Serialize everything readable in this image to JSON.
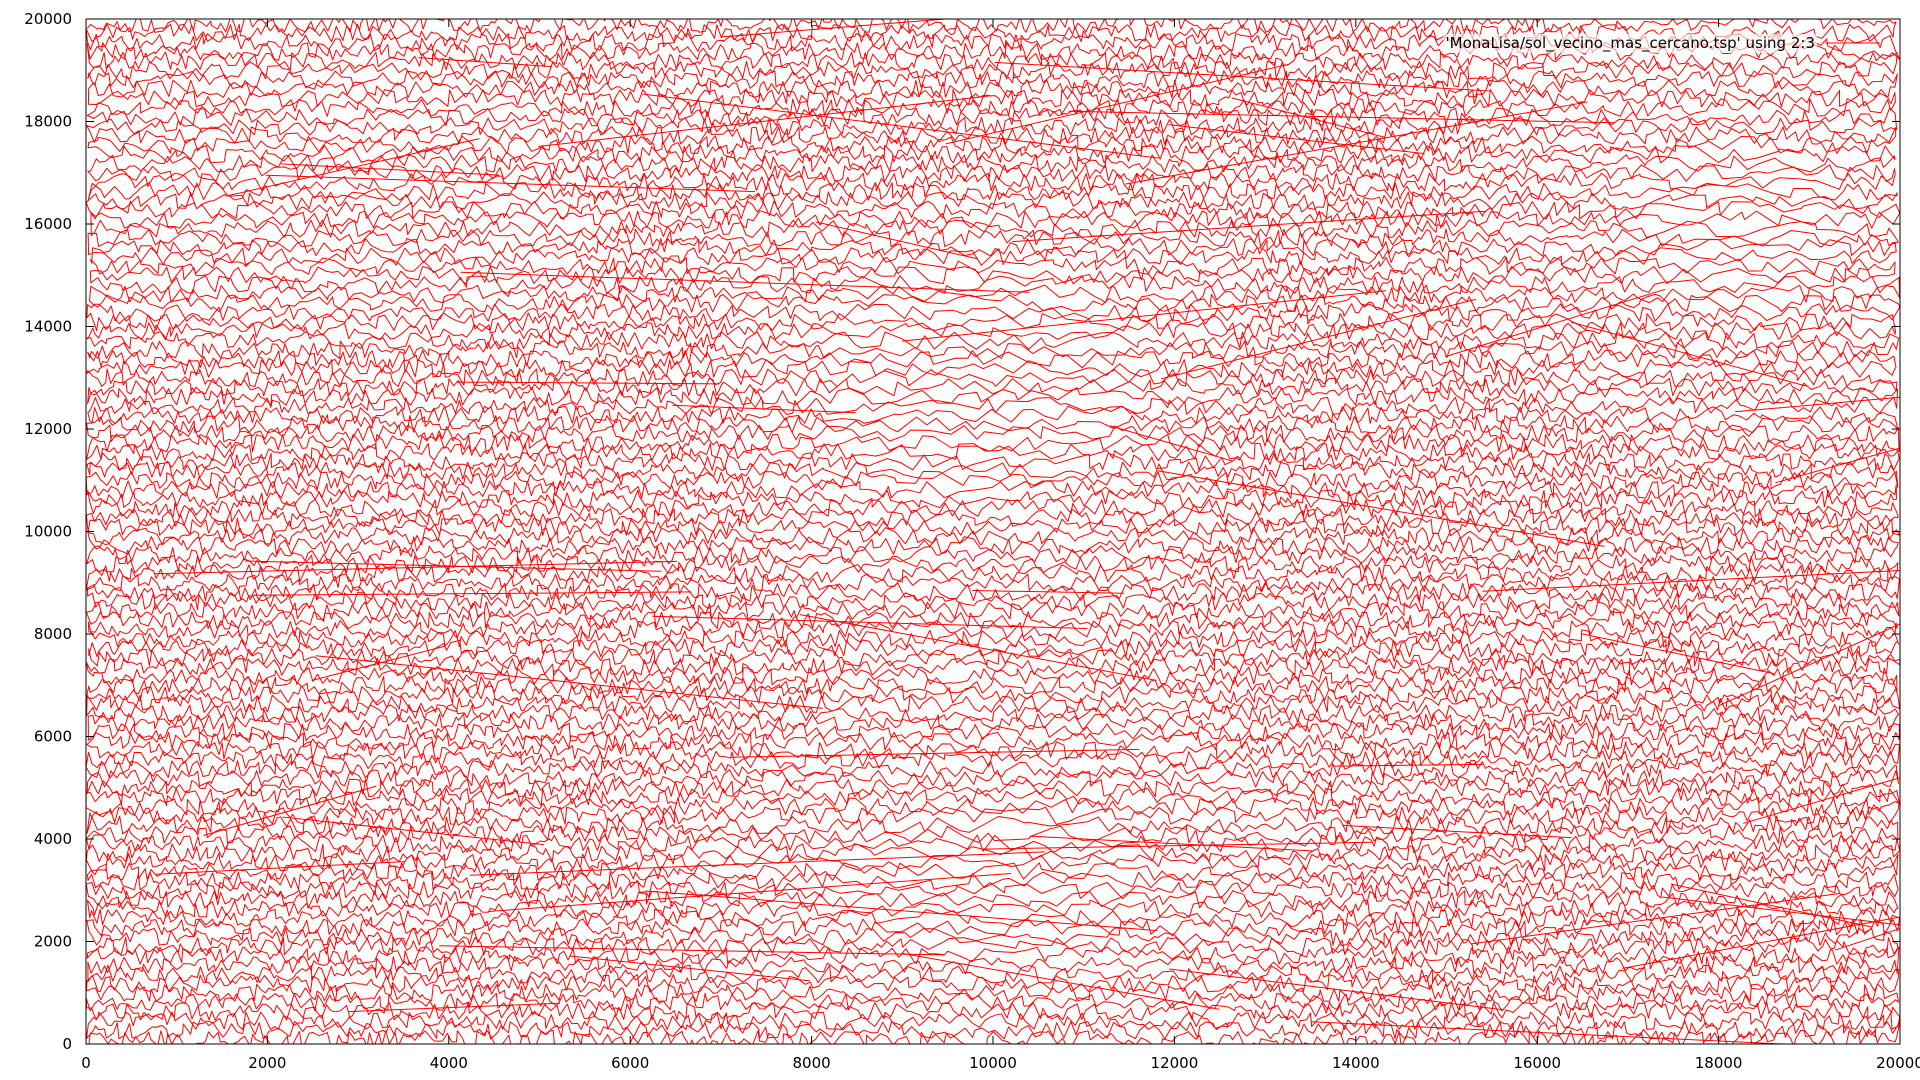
{
  "chart_data": {
    "type": "line",
    "title": "",
    "xlabel": "",
    "ylabel": "",
    "xlim": [
      0,
      20000
    ],
    "ylim": [
      0,
      20000
    ],
    "grid": false,
    "legend_placement": "top-right",
    "x_ticks": [
      0,
      2000,
      4000,
      6000,
      8000,
      10000,
      12000,
      14000,
      16000,
      18000,
      20000
    ],
    "y_ticks": [
      0,
      2000,
      4000,
      6000,
      8000,
      10000,
      12000,
      14000,
      16000,
      18000,
      20000
    ],
    "x_tick_labels": [
      "0",
      "2000",
      "4000",
      "6000",
      "8000",
      "10000",
      "12000",
      "14000",
      "16000",
      "18000",
      "20000"
    ],
    "y_tick_labels": [
      "0",
      "2000",
      "4000",
      "6000",
      "8000",
      "10000",
      "12000",
      "14000",
      "16000",
      "18000",
      "20000"
    ],
    "series": [
      {
        "name": "'MonaLisa/sol_vecino_mas_cercano.tsp' using 2:3",
        "color": "#ff0000",
        "style": "dense single-path nearest-neighbour tour forming a portrait image"
      }
    ],
    "colors": {
      "series": "#ff0000",
      "axis": "#000000",
      "background": "#ffffff"
    }
  }
}
